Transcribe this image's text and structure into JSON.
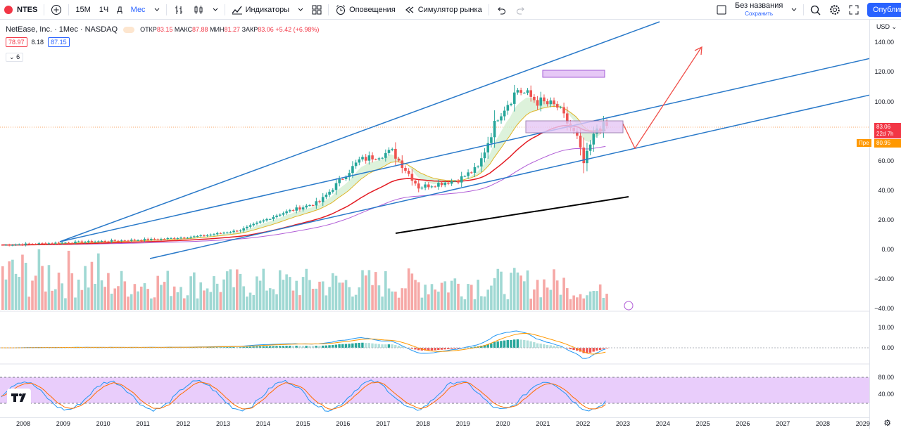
{
  "toolbar": {
    "symbol": "NTES",
    "intervals": [
      "15M",
      "1Ч",
      "Д",
      "Мес"
    ],
    "active_interval": "Мес",
    "indicators_label": "Индикаторы",
    "alerts_label": "Оповещения",
    "replay_label": "Симулятор рынка",
    "layout_title": "Без названия",
    "layout_save": "Сохранить",
    "publish_label": "Опублик"
  },
  "legend": {
    "title": "NetEase, Inc. · 1Мес · NASDAQ",
    "open_label": "ОТКР",
    "open": "83.15",
    "high_label": "МАКС",
    "high": "87.88",
    "low_label": "МИН",
    "low": "81.27",
    "close_label": "ЗАКР",
    "close": "83.06",
    "change": "+5.42 (+6.98%)",
    "bid": "78.97",
    "spread": "8.18",
    "ask": "87.15",
    "indicator_count": "6"
  },
  "axis": {
    "currency": "USD",
    "price_ticks": [
      "140.00",
      "120.00",
      "100.00",
      "80.00",
      "60.00",
      "40.00",
      "20.00",
      "0.00",
      "−20.00",
      "−40.00"
    ],
    "macd_ticks": [
      "10.00",
      "0.00"
    ],
    "stoch_ticks": [
      "80.00",
      "40.00"
    ],
    "last_price": "83.06",
    "countdown": "22d 7h",
    "pre_label": "Пре",
    "pre_price": "80.95"
  },
  "xaxis": {
    "years": [
      "2008",
      "2009",
      "2010",
      "2011",
      "2012",
      "2013",
      "2014",
      "2015",
      "2016",
      "2017",
      "2018",
      "2019",
      "2020",
      "2021",
      "2022",
      "2023",
      "2024",
      "2025",
      "2026",
      "2027",
      "2028",
      "2029"
    ]
  },
  "colors": {
    "up": "#26a69a",
    "down": "#ef5350",
    "trend": "#2979c9",
    "sma_red": "#e31b23",
    "sma_purple": "#b05cd6",
    "ema_yellow": "#e0b52a",
    "stoch_bg": "#e9cdfb",
    "accent": "#2962ff"
  }
}
